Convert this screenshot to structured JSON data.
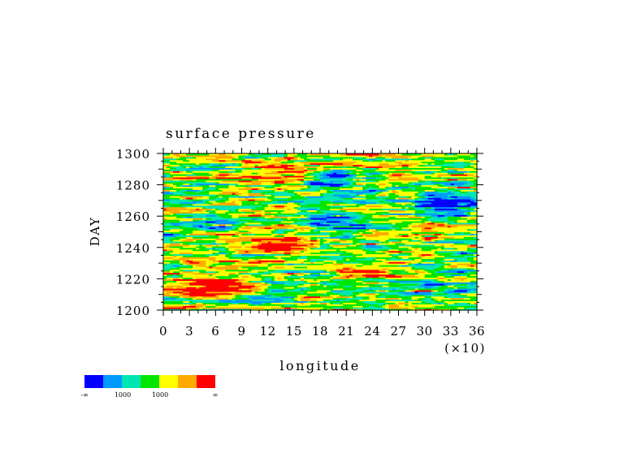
{
  "chart_data": {
    "type": "heatmap",
    "title": "surface pressure",
    "xlabel": "longitude",
    "ylabel": "DAY",
    "x_multiplier_label": "(×10)",
    "x_ticks": [
      0,
      3,
      6,
      9,
      12,
      15,
      18,
      21,
      24,
      27,
      30,
      33,
      36
    ],
    "x_tick_labels": [
      "0",
      "3",
      "6",
      "9",
      "12",
      "15",
      "18",
      "21",
      "24",
      "27",
      "30",
      "33",
      "36"
    ],
    "xlim": [
      0,
      36
    ],
    "y_ticks": [
      1200,
      1220,
      1240,
      1260,
      1280,
      1300
    ],
    "y_tick_labels": [
      "1200",
      "1220",
      "1240",
      "1260",
      "1280",
      "1300"
    ],
    "ylim": [
      1200,
      1300
    ],
    "grid": false,
    "colorbar": {
      "placement": "bottom-left",
      "colors": [
        "#0000ff",
        "#0099ff",
        "#00e6b3",
        "#00e600",
        "#ffff00",
        "#ffaa00",
        "#ff0000"
      ],
      "labels": [
        "-∞",
        "1000",
        "1000",
        "∞"
      ]
    },
    "pattern_description": "noisy horizontal streaks of surface pressure over longitude (×10) and day; dominant yellow/green, with red streaks near days 1210–1220, 1240–1250 and blue/cyan streaks near 1255–1285 at longitudes 180–360",
    "bands": [
      {
        "day_min": 1200,
        "day_max": 1206,
        "lon_min": 0,
        "lon_max": 36,
        "dominant": "yellow"
      },
      {
        "day_min": 1210,
        "day_max": 1222,
        "lon_min": 0,
        "lon_max": 12,
        "dominant": "red"
      },
      {
        "day_min": 1220,
        "day_max": 1228,
        "lon_min": 20,
        "lon_max": 30,
        "dominant": "red"
      },
      {
        "day_min": 1238,
        "day_max": 1248,
        "lon_min": 6,
        "lon_max": 18,
        "dominant": "red"
      },
      {
        "day_min": 1246,
        "day_max": 1262,
        "lon_min": 17,
        "lon_max": 24,
        "dominant": "cyan"
      },
      {
        "day_min": 1258,
        "day_max": 1278,
        "lon_min": 29,
        "lon_max": 36,
        "dominant": "blue"
      },
      {
        "day_min": 1278,
        "day_max": 1290,
        "lon_min": 16,
        "lon_max": 22,
        "dominant": "blue"
      },
      {
        "day_min": 1286,
        "day_max": 1298,
        "lon_min": 9,
        "lon_max": 19,
        "dominant": "orange"
      }
    ]
  }
}
